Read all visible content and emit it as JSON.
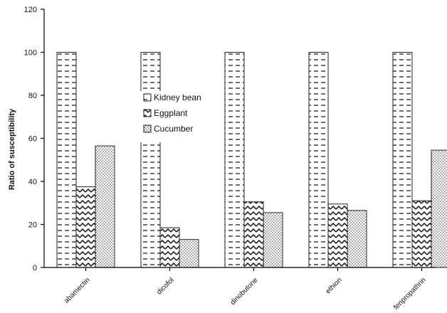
{
  "chart_data": {
    "type": "bar",
    "title": "",
    "xlabel": "",
    "ylabel": "Ratio of susceptibility",
    "categories": [
      "abamectin",
      "dicofol",
      "dinobutone",
      "ethion",
      "fenpropathrin"
    ],
    "series": [
      {
        "name": "Kidney bean",
        "values": [
          100,
          100,
          100,
          100,
          100
        ],
        "pattern": "dashes"
      },
      {
        "name": "Eggplant",
        "values": [
          37.5,
          18.5,
          30.5,
          29.5,
          31
        ],
        "pattern": "zigzag"
      },
      {
        "name": "Cucumber",
        "values": [
          56.5,
          13,
          25.5,
          26.5,
          54.5
        ],
        "pattern": "dots"
      }
    ],
    "ylim": [
      0,
      120
    ],
    "yticks": [
      0,
      20,
      40,
      60,
      80,
      100,
      120
    ],
    "grid": false,
    "legend_position": "inside, left of center",
    "colors": {
      "bar_fill": "#ffffff",
      "stroke": "#222222",
      "axis": "#000000"
    }
  }
}
